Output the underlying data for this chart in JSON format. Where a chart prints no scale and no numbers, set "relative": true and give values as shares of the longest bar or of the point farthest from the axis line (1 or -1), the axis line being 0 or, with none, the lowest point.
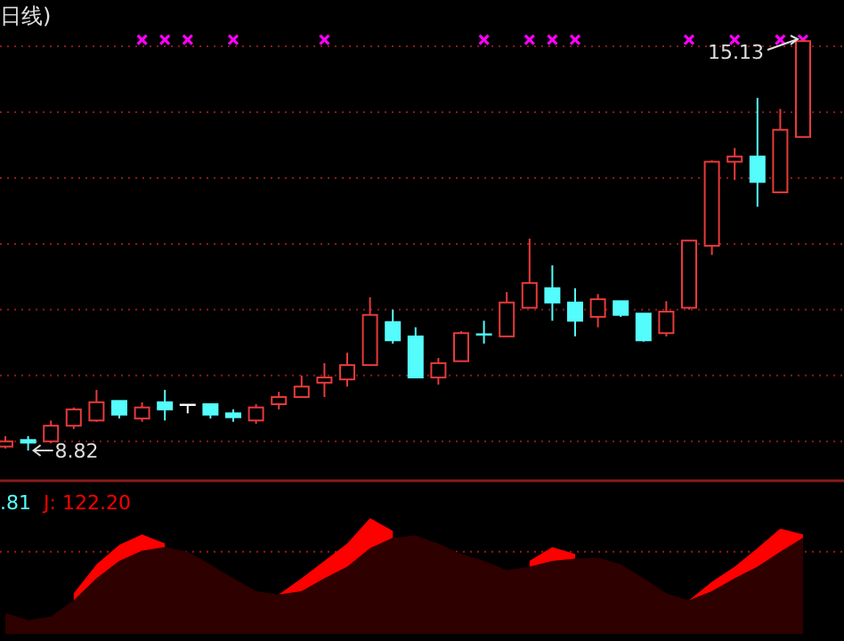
{
  "chart_data": [
    {
      "type": "candlestick",
      "title": "日线)",
      "categories": [
        null,
        null,
        null,
        null,
        null,
        null,
        null,
        null,
        null,
        null,
        null,
        null,
        null,
        null,
        null,
        null,
        null,
        null,
        null,
        null,
        null,
        null,
        null,
        null,
        null,
        null,
        null,
        null,
        null,
        null,
        null,
        null,
        null,
        null,
        null,
        null
      ],
      "ohlc": [
        [
          8.88,
          9.04,
          8.85,
          8.96
        ],
        [
          8.98,
          9.04,
          8.82,
          8.94
        ],
        [
          8.96,
          9.28,
          8.93,
          9.2
        ],
        [
          9.2,
          9.48,
          9.15,
          9.45
        ],
        [
          9.28,
          9.75,
          9.26,
          9.56
        ],
        [
          9.58,
          9.58,
          9.31,
          9.37
        ],
        [
          9.31,
          9.56,
          9.26,
          9.48
        ],
        [
          9.56,
          9.75,
          9.28,
          9.45
        ],
        [
          9.52,
          9.53,
          9.39,
          9.52
        ],
        [
          9.53,
          9.53,
          9.31,
          9.37
        ],
        [
          9.39,
          9.45,
          9.26,
          9.33
        ],
        [
          9.28,
          9.53,
          9.23,
          9.48
        ],
        [
          9.53,
          9.72,
          9.45,
          9.64
        ],
        [
          9.64,
          9.97,
          9.64,
          9.8
        ],
        [
          9.86,
          10.16,
          9.64,
          9.94
        ],
        [
          9.91,
          10.32,
          9.8,
          10.13
        ],
        [
          10.13,
          11.17,
          10.13,
          10.9
        ],
        [
          10.79,
          10.98,
          10.46,
          10.51
        ],
        [
          10.57,
          10.71,
          9.94,
          9.94
        ],
        [
          9.94,
          10.24,
          9.83,
          10.16
        ],
        [
          10.19,
          10.65,
          10.19,
          10.62
        ],
        [
          10.6,
          10.81,
          10.46,
          10.59
        ],
        [
          10.57,
          11.25,
          10.57,
          11.09
        ],
        [
          11.01,
          12.07,
          11.01,
          11.39
        ],
        [
          11.31,
          11.66,
          10.81,
          11.09
        ],
        [
          11.09,
          11.31,
          10.57,
          10.81
        ],
        [
          10.87,
          11.22,
          10.71,
          11.14
        ],
        [
          11.11,
          11.11,
          10.87,
          10.9
        ],
        [
          10.92,
          10.92,
          10.49,
          10.51
        ],
        [
          10.62,
          11.11,
          10.57,
          10.95
        ],
        [
          11.01,
          12.04,
          10.98,
          12.04
        ],
        [
          11.96,
          13.27,
          11.82,
          13.25
        ],
        [
          13.25,
          13.46,
          12.97,
          13.33
        ],
        [
          13.33,
          14.23,
          12.56,
          12.94
        ],
        [
          12.78,
          14.06,
          12.78,
          13.74
        ],
        [
          13.63,
          15.13,
          13.63,
          15.1
        ]
      ],
      "colors": [
        "#e83a3a",
        "#54fcfc",
        "#e83a3a",
        "#e83a3a",
        "#e83a3a",
        "#54fcfc",
        "#e83a3a",
        "#54fcfc",
        "#ffffff",
        "#54fcfc",
        "#54fcfc",
        "#e83a3a",
        "#e83a3a",
        "#e83a3a",
        "#e83a3a",
        "#e83a3a",
        "#e83a3a",
        "#54fcfc",
        "#54fcfc",
        "#e83a3a",
        "#e83a3a",
        "#54fcfc",
        "#e83a3a",
        "#e83a3a",
        "#54fcfc",
        "#54fcfc",
        "#e83a3a",
        "#54fcfc",
        "#54fcfc",
        "#e83a3a",
        "#e83a3a",
        "#e83a3a",
        "#e83a3a",
        "#54fcfc",
        "#e83a3a",
        "#e83a3a"
      ],
      "grid": "y",
      "yticks": [
        {
          "value": 8.96,
          "label": null
        },
        {
          "value": 9.97,
          "label": null
        },
        {
          "value": 10.98,
          "label": null
        },
        {
          "value": 11.99,
          "label": null
        },
        {
          "value": 13.0,
          "label": null
        },
        {
          "value": 14.01,
          "label": null
        },
        {
          "value": 15.02,
          "label": null
        }
      ],
      "annotations": [
        {
          "text": "15.13",
          "y": 15.13
        },
        "8.82"
      ],
      "series": [
        {
          "type": "scatter",
          "color": "#ff00ff",
          "marker": "cross",
          "values": [
            null,
            null,
            null,
            null,
            null,
            null,
            15.12,
            15.12,
            15.12,
            null,
            15.12,
            null,
            null,
            null,
            15.12,
            null,
            null,
            null,
            null,
            null,
            null,
            15.12,
            null,
            15.12,
            15.12,
            15.12,
            null,
            null,
            null,
            null,
            15.12,
            null,
            15.12,
            null,
            15.12,
            15.12
          ]
        }
      ]
    },
    {
      "type": "area",
      "relative": true,
      "categories": [
        null,
        null,
        null,
        null,
        null,
        null,
        null,
        null,
        null,
        null,
        null,
        null,
        null,
        null,
        null,
        null,
        null,
        null,
        null,
        null,
        null,
        null,
        null,
        null,
        null,
        null,
        null,
        null,
        null,
        null,
        null,
        null,
        null,
        null,
        null,
        null
      ],
      "annotations": [
        ".81"
      ],
      "ref_lines": [
        {
          "axis": "y",
          "value": 0.71,
          "color": "#a01818",
          "line_style": "dotted"
        }
      ],
      "series": [
        {
          "name": "J: 122.20",
          "color": "#ff0000",
          "values": [
            null,
            null,
            null,
            0.35,
            0.6,
            0.77,
            0.86,
            0.78,
            null,
            null,
            null,
            null,
            0.34,
            0.48,
            0.63,
            0.78,
            1,
            0.89,
            null,
            null,
            null,
            null,
            null,
            0.63,
            0.75,
            0.69,
            null,
            null,
            null,
            null,
            0.29,
            0.45,
            0.58,
            0.74,
            0.91,
            0.86
          ]
        },
        {
          "color": "#2e0000",
          "values": [
            0.18,
            0.12,
            0.15,
            0.29,
            0.48,
            0.63,
            0.72,
            0.75,
            0.71,
            0.6,
            0.48,
            0.37,
            0.34,
            0.37,
            0.48,
            0.58,
            0.74,
            0.83,
            0.85,
            0.78,
            0.69,
            0.63,
            0.55,
            0.58,
            0.63,
            0.65,
            0.66,
            0.6,
            0.48,
            0.35,
            0.29,
            0.37,
            0.48,
            0.58,
            0.71,
            0.83
          ]
        }
      ]
    }
  ]
}
